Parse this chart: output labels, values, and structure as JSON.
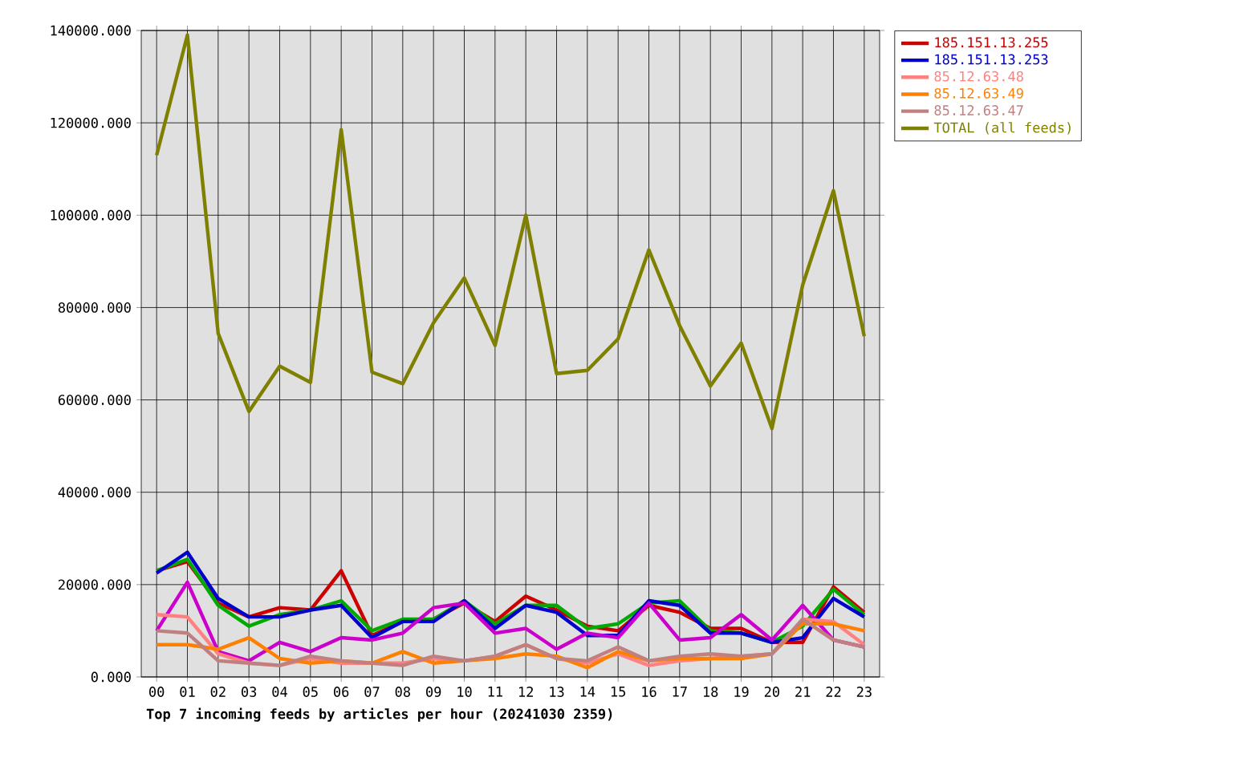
{
  "chart_data": {
    "type": "line",
    "title": "Top 7 incoming feeds by articles per hour (20241030 2359)",
    "categories": [
      "00",
      "01",
      "02",
      "03",
      "04",
      "05",
      "06",
      "07",
      "08",
      "09",
      "10",
      "11",
      "12",
      "13",
      "14",
      "15",
      "16",
      "17",
      "18",
      "19",
      "20",
      "21",
      "22",
      "23"
    ],
    "series": [
      {
        "name": "185.151.13.255",
        "color": "#cc0000",
        "values": [
          23000,
          25000,
          16000,
          13000,
          15000,
          14500,
          23000,
          9000,
          12000,
          12500,
          16000,
          12000,
          17500,
          14500,
          11000,
          10000,
          15500,
          14000,
          10500,
          10500,
          7500,
          7500,
          19500,
          14000
        ]
      },
      {
        "color": "#00aa00",
        "values": [
          23000,
          25500,
          15500,
          11000,
          13500,
          14500,
          16500,
          10000,
          12500,
          12500,
          16500,
          11500,
          15500,
          15500,
          10500,
          11500,
          16000,
          16500,
          10000,
          9500,
          7500,
          11000,
          19000,
          13500
        ]
      },
      {
        "name": "185.151.13.253",
        "color": "#0000cc",
        "values": [
          22500,
          27000,
          17000,
          13000,
          13000,
          14500,
          15500,
          8500,
          12000,
          12000,
          16500,
          10500,
          15500,
          14000,
          9000,
          9000,
          16500,
          15500,
          9500,
          9500,
          7500,
          8500,
          17000,
          13000
        ]
      },
      {
        "color": "#cc00cc",
        "values": [
          10000,
          20500,
          5500,
          3500,
          7500,
          5500,
          8500,
          8000,
          9500,
          15000,
          16000,
          9500,
          10500,
          6000,
          9500,
          8500,
          16000,
          8000,
          8500,
          13500,
          8000,
          15500,
          8000,
          6500
        ]
      },
      {
        "name": "85.12.63.48",
        "color": "#ff8080",
        "values": [
          13500,
          13000,
          5000,
          3000,
          2500,
          4000,
          3000,
          3000,
          3000,
          4000,
          3500,
          4500,
          7000,
          4000,
          3000,
          5000,
          2500,
          3500,
          4000,
          4500,
          5000,
          12500,
          12000,
          7000
        ]
      },
      {
        "name": "85.12.63.49",
        "color": "#ff8000",
        "values": [
          7000,
          7000,
          6000,
          8500,
          4000,
          3000,
          3500,
          3000,
          5500,
          3000,
          3500,
          4000,
          5000,
          4500,
          2000,
          5500,
          3500,
          4000,
          4000,
          4000,
          5000,
          11500,
          11500,
          10000
        ]
      },
      {
        "name": "85.12.63.47",
        "color": "#c08080",
        "values": [
          10000,
          9500,
          3500,
          3000,
          2500,
          4500,
          3500,
          3000,
          2500,
          4500,
          3500,
          4500,
          7000,
          4000,
          3500,
          6500,
          3500,
          4500,
          5000,
          4500,
          5000,
          12500,
          8000,
          6500
        ]
      },
      {
        "name": "TOTAL (all feeds)",
        "color": "#808000",
        "values": [
          113000,
          139000,
          74400,
          57500,
          67300,
          63800,
          118500,
          66000,
          63500,
          76700,
          86400,
          71800,
          100000,
          65700,
          66400,
          73200,
          92500,
          76100,
          63000,
          72300,
          53800,
          84900,
          105300,
          73800
        ]
      }
    ],
    "ylim": [
      0,
      140000
    ],
    "yticks": [
      {
        "value": 0,
        "label": "0.000"
      },
      {
        "value": 20000,
        "label": "20000.000"
      },
      {
        "value": 40000,
        "label": "40000.000"
      },
      {
        "value": 60000,
        "label": "60000.000"
      },
      {
        "value": 80000,
        "label": "80000.000"
      },
      {
        "value": 100000,
        "label": "100000.000"
      },
      {
        "value": 120000,
        "label": "120000.000"
      },
      {
        "value": 140000,
        "label": "140000.000"
      }
    ],
    "grid": true,
    "legend": "right",
    "line_style": "solid"
  }
}
